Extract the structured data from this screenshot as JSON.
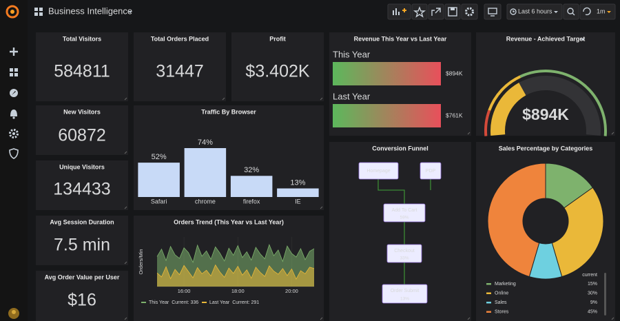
{
  "header": {
    "title": "Business Intelligence",
    "time_range": "Last 6 hours",
    "refresh": "1m"
  },
  "stats": [
    {
      "title": "Total Visitors",
      "value": "584811"
    },
    {
      "title": "Total Orders Placed",
      "value": "31447"
    },
    {
      "title": "Profit",
      "value": "$3.402K"
    },
    {
      "title": "New Visitors",
      "value": "60872"
    },
    {
      "title": "Unique Visitors",
      "value": "134433"
    },
    {
      "title": "Avg Session Duration",
      "value": "7.5 min"
    },
    {
      "title": "Avg Order Value per User",
      "value": "$16"
    }
  ],
  "revenue_bars": {
    "title": "Revenue This Year vs Last Year",
    "rows": [
      {
        "label": "This Year",
        "value": "$894K"
      },
      {
        "label": "Last Year",
        "value": "$761K"
      }
    ]
  },
  "gauge": {
    "title": "Revenue - Achieved Target",
    "value": "$894K"
  },
  "funnel": {
    "title": "Conversion Funnel",
    "nodes": [
      {
        "label": "Homepage"
      },
      {
        "label": "PDP"
      },
      {
        "label": "Add To Cart",
        "value": "59%"
      },
      {
        "label": "Checkout",
        "value": "33%"
      },
      {
        "label": "Order Submit",
        "value": "13%"
      }
    ]
  },
  "chart_data": [
    {
      "type": "bar",
      "title": "Traffic By Browser",
      "categories": [
        "Safari",
        "chrome",
        "firefox",
        "IE"
      ],
      "values": [
        52,
        74,
        32,
        13
      ],
      "value_labels": [
        "52%",
        "74%",
        "32%",
        "13%"
      ],
      "color": "#c8daf7",
      "ylim": [
        0,
        74
      ]
    },
    {
      "type": "line",
      "title": "Orders Trend (This Year vs Last Year)",
      "y_label": "Orders/Min",
      "x": [
        "15:00",
        "15:10",
        "15:20",
        "15:30",
        "15:40",
        "15:50",
        "16:00",
        "16:10",
        "16:20",
        "16:30",
        "16:40",
        "16:50",
        "17:00",
        "17:10",
        "17:20",
        "17:30",
        "17:40",
        "17:50",
        "18:00",
        "18:10",
        "18:20",
        "18:30",
        "18:40",
        "18:50",
        "19:00",
        "19:10",
        "19:20",
        "19:30",
        "19:40",
        "19:50",
        "20:00",
        "20:10",
        "20:20",
        "20:30",
        "20:40",
        "20:50"
      ],
      "xticks": [
        "16:00",
        "18:00",
        "20:00"
      ],
      "ylim": [
        250,
        350
      ],
      "legend_stat_label": "Current:",
      "series": [
        {
          "name": "This Year",
          "color": "#7eb26d",
          "current": 336,
          "values": [
            318,
            335,
            309,
            341,
            322,
            314,
            338,
            327,
            305,
            344,
            319,
            331,
            312,
            340,
            326,
            308,
            337,
            321,
            343,
            316,
            329,
            310,
            339,
            324,
            313,
            345,
            320,
            333,
            307,
            342,
            325,
            317,
            336,
            311,
            330,
            336
          ]
        },
        {
          "name": "Last Year",
          "color": "#eab839",
          "current": 291,
          "values": [
            281,
            272,
            295,
            268,
            289,
            277,
            298,
            284,
            270,
            293,
            279,
            287,
            274,
            299,
            283,
            271,
            292,
            280,
            296,
            276,
            288,
            269,
            294,
            282,
            273,
            297,
            285,
            278,
            291,
            275,
            290,
            267,
            286,
            279,
            294,
            291
          ]
        }
      ]
    },
    {
      "type": "pie",
      "title": "Sales Percentage by Categories",
      "legend_header": "current",
      "categories": [
        "Marketing",
        "Online",
        "Sales",
        "Stores"
      ],
      "values": [
        15,
        30,
        9,
        45
      ],
      "value_labels": [
        "15%",
        "30%",
        "9%",
        "45%"
      ],
      "colors": [
        "#7eb26d",
        "#eab839",
        "#6ed0e0",
        "#ef843c"
      ]
    }
  ]
}
